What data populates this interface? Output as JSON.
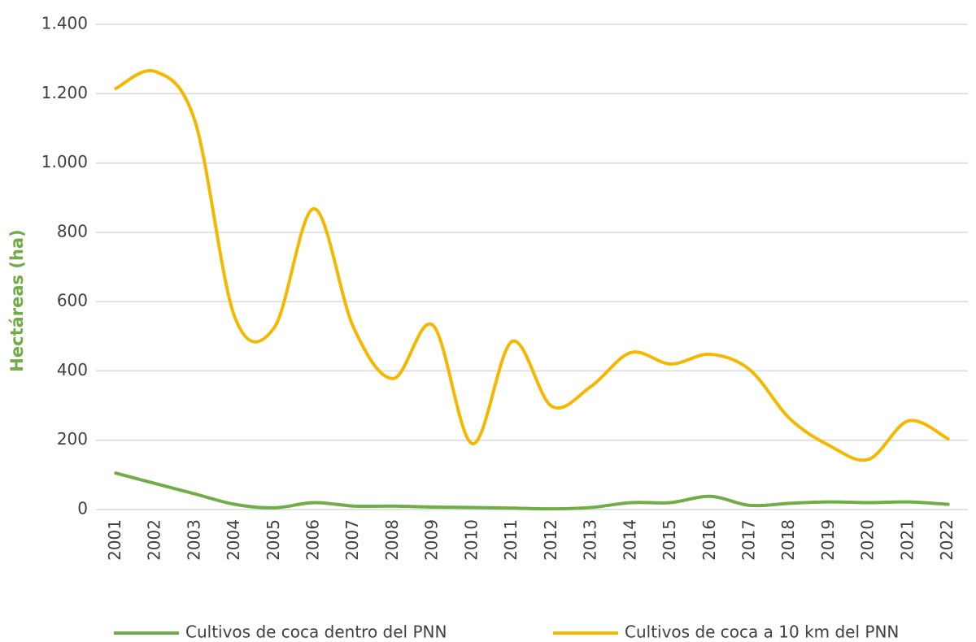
{
  "chart_data": {
    "type": "line",
    "y_label": "Hectáreas (ha)",
    "categories": [
      "2001",
      "2002",
      "2003",
      "2004",
      "2005",
      "2006",
      "2007",
      "2008",
      "2009",
      "2010",
      "2011",
      "2012",
      "2013",
      "2014",
      "2015",
      "2016",
      "2017",
      "2018",
      "2019",
      "2020",
      "2021",
      "2022"
    ],
    "series": [
      {
        "name": "Cultivos de coca dentro del PNN",
        "color": "#70ad47",
        "values": [
          105,
          75,
          45,
          15,
          5,
          20,
          10,
          10,
          7,
          6,
          4,
          2,
          6,
          20,
          20,
          38,
          12,
          18,
          22,
          20,
          22,
          15
        ]
      },
      {
        "name": "Cultivos de coca a 10 km del PNN",
        "color": "#f5b800",
        "values": [
          1215,
          1264,
          1120,
          556,
          525,
          868,
          525,
          378,
          532,
          190,
          485,
          298,
          356,
          453,
          420,
          448,
          403,
          263,
          185,
          145,
          256,
          204
        ]
      }
    ],
    "ylim": [
      0,
      1400
    ],
    "yticks": [
      0,
      200,
      400,
      600,
      800,
      {
        "value": 1000,
        "label": "1.000"
      },
      {
        "value": 1200,
        "label": "1.200"
      },
      {
        "value": 1400,
        "label": "1.400"
      }
    ],
    "grid": true,
    "smooth": true,
    "legend": "bottom"
  }
}
